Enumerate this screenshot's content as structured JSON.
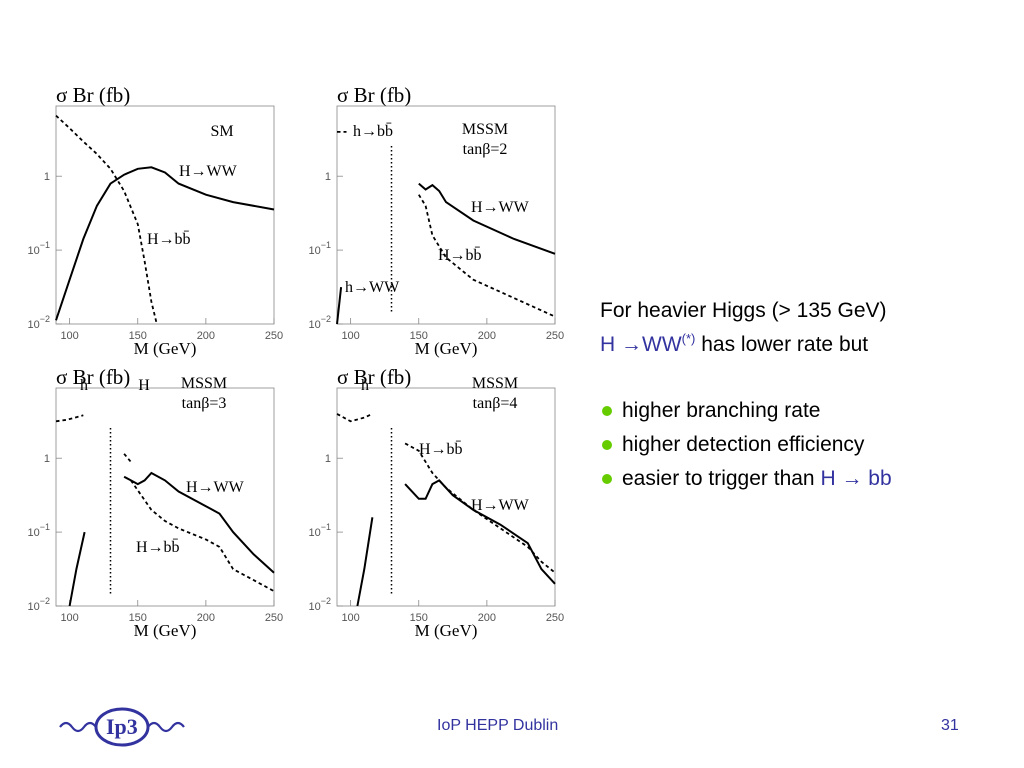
{
  "text": {
    "line1": "For heavier Higgs (> 135 GeV)",
    "line2_blue": "H →WW",
    "line2_sup": "(*)",
    "line2_rest": " has lower rate but",
    "bullets": [
      {
        "text": "higher branching rate",
        "blue": ""
      },
      {
        "text": "higher detection efficiency",
        "blue": ""
      },
      {
        "text": "easier to trigger than ",
        "blue": "H → bb"
      }
    ]
  },
  "footer": {
    "center": "IoP HEPP Dublin",
    "page": "31",
    "logo_text": "Ip3"
  },
  "colors": {
    "accent_blue": "#3333a0",
    "bullet_green": "#66cc00"
  },
  "chart_data": [
    {
      "type": "line",
      "title": "σ Br   (fb)",
      "xlabel": "M  (GeV)",
      "xlim": [
        90,
        250
      ],
      "ylim_log10": [
        -2,
        0.95
      ],
      "xticks": [
        "100",
        "150",
        "200",
        "250"
      ],
      "yticks": [
        {
          "base": "1",
          "exp": ""
        },
        {
          "base": "10",
          "exp": "−1"
        },
        {
          "base": "10",
          "exp": "−2"
        }
      ],
      "labels": [
        "SM"
      ],
      "separator_x": null,
      "series": [
        {
          "name": "H→WW",
          "style": "solid",
          "points": [
            [
              90,
              -1.95
            ],
            [
              100,
              -1.4
            ],
            [
              110,
              -0.85
            ],
            [
              120,
              -0.4
            ],
            [
              130,
              -0.1
            ],
            [
              140,
              0.02
            ],
            [
              150,
              0.1
            ],
            [
              160,
              0.12
            ],
            [
              170,
              0.05
            ],
            [
              180,
              -0.1
            ],
            [
              200,
              -0.25
            ],
            [
              220,
              -0.35
            ],
            [
              250,
              -0.45
            ]
          ]
        },
        {
          "name": "H→bb̄",
          "style": "dashed",
          "points": [
            [
              90,
              0.82
            ],
            [
              100,
              0.65
            ],
            [
              110,
              0.47
            ],
            [
              120,
              0.3
            ],
            [
              130,
              0.1
            ],
            [
              140,
              -0.2
            ],
            [
              150,
              -0.65
            ],
            [
              155,
              -1.15
            ],
            [
              160,
              -1.7
            ],
            [
              164,
              -2.0
            ]
          ]
        }
      ]
    },
    {
      "type": "line",
      "title": "σ Br   (fb)",
      "xlabel": "M  (GeV)",
      "xlim": [
        90,
        250
      ],
      "ylim_log10": [
        -2,
        0.95
      ],
      "xticks": [
        "100",
        "150",
        "200",
        "250"
      ],
      "yticks": [
        {
          "base": "1",
          "exp": ""
        },
        {
          "base": "10",
          "exp": "−1"
        },
        {
          "base": "10",
          "exp": "−2"
        }
      ],
      "labels": [
        "MSSM",
        "tanβ=2"
      ],
      "separator_x": 130,
      "series": [
        {
          "name": "h→bb̄",
          "style": "dashed",
          "points": [
            [
              90,
              0.6
            ],
            [
              97,
              0.6
            ]
          ]
        },
        {
          "name": "h→WW",
          "style": "solid",
          "points": [
            [
              90,
              -2.0
            ],
            [
              93,
              -1.5
            ]
          ]
        },
        {
          "name": "H→WW",
          "style": "solid",
          "points": [
            [
              150,
              -0.1
            ],
            [
              155,
              -0.18
            ],
            [
              160,
              -0.12
            ],
            [
              165,
              -0.2
            ],
            [
              170,
              -0.35
            ],
            [
              190,
              -0.6
            ],
            [
              220,
              -0.85
            ],
            [
              250,
              -1.05
            ]
          ]
        },
        {
          "name": "H→bb̄",
          "style": "dashed",
          "points": [
            [
              150,
              -0.25
            ],
            [
              155,
              -0.4
            ],
            [
              160,
              -0.8
            ],
            [
              170,
              -1.1
            ],
            [
              190,
              -1.4
            ],
            [
              220,
              -1.65
            ],
            [
              250,
              -1.9
            ]
          ]
        }
      ]
    },
    {
      "type": "line",
      "title": "σ Br   (fb)",
      "xlabel": "M  (GeV)",
      "xlim": [
        90,
        250
      ],
      "ylim_log10": [
        -2,
        0.95
      ],
      "xticks": [
        "100",
        "150",
        "200",
        "250"
      ],
      "yticks": [
        {
          "base": "1",
          "exp": ""
        },
        {
          "base": "10",
          "exp": "−1"
        },
        {
          "base": "10",
          "exp": "−2"
        }
      ],
      "labels": [
        "MSSM",
        "tanβ=3",
        "h",
        "H"
      ],
      "separator_x": 130,
      "series": [
        {
          "name": "h",
          "style": "dashed",
          "points": [
            [
              90,
              0.5
            ],
            [
              98,
              0.52
            ],
            [
              104,
              0.55
            ],
            [
              110,
              0.58
            ]
          ]
        },
        {
          "name": "",
          "style": "solid",
          "points": [
            [
              100,
              -2.0
            ],
            [
              105,
              -1.5
            ],
            [
              111,
              -1.0
            ]
          ]
        },
        {
          "name": "H",
          "style": "dashed",
          "points": [
            [
              140,
              0.06
            ],
            [
              145,
              -0.05
            ]
          ]
        },
        {
          "name": "H→WW",
          "style": "solid",
          "points": [
            [
              140,
              -0.25
            ],
            [
              150,
              -0.35
            ],
            [
              155,
              -0.3
            ],
            [
              160,
              -0.2
            ],
            [
              170,
              -0.3
            ],
            [
              180,
              -0.45
            ],
            [
              200,
              -0.65
            ],
            [
              210,
              -0.75
            ],
            [
              220,
              -1.0
            ],
            [
              235,
              -1.3
            ],
            [
              250,
              -1.55
            ]
          ]
        },
        {
          "name": "H→bb̄",
          "style": "dashed",
          "points": [
            [
              145,
              -0.3
            ],
            [
              160,
              -0.7
            ],
            [
              170,
              -0.85
            ],
            [
              180,
              -0.95
            ],
            [
              200,
              -1.1
            ],
            [
              210,
              -1.2
            ],
            [
              220,
              -1.5
            ],
            [
              235,
              -1.65
            ],
            [
              250,
              -1.8
            ]
          ]
        }
      ]
    },
    {
      "type": "line",
      "title": "σ Br   (fb)",
      "xlabel": "M  (GeV)",
      "xlim": [
        90,
        250
      ],
      "ylim_log10": [
        -2,
        0.95
      ],
      "xticks": [
        "100",
        "150",
        "200",
        "250"
      ],
      "yticks": [
        {
          "base": "1",
          "exp": ""
        },
        {
          "base": "10",
          "exp": "−1"
        },
        {
          "base": "10",
          "exp": "−2"
        }
      ],
      "labels": [
        "MSSM",
        "tanβ=4",
        "h"
      ],
      "separator_x": 130,
      "series": [
        {
          "name": "h",
          "style": "dashed",
          "points": [
            [
              90,
              0.6
            ],
            [
              100,
              0.5
            ],
            [
              110,
              0.55
            ],
            [
              116,
              0.6
            ]
          ]
        },
        {
          "name": "",
          "style": "solid",
          "points": [
            [
              105,
              -2.0
            ],
            [
              110,
              -1.5
            ],
            [
              116,
              -0.8
            ]
          ]
        },
        {
          "name": "H→bb̄",
          "style": "dashed",
          "points": [
            [
              140,
              0.2
            ],
            [
              150,
              0.1
            ],
            [
              160,
              -0.2
            ],
            [
              170,
              -0.4
            ],
            [
              190,
              -0.7
            ],
            [
              210,
              -0.95
            ],
            [
              230,
              -1.2
            ],
            [
              240,
              -1.4
            ],
            [
              250,
              -1.55
            ]
          ]
        },
        {
          "name": "H→WW",
          "style": "solid",
          "points": [
            [
              140,
              -0.35
            ],
            [
              150,
              -0.55
            ],
            [
              155,
              -0.55
            ],
            [
              160,
              -0.35
            ],
            [
              165,
              -0.3
            ],
            [
              175,
              -0.5
            ],
            [
              190,
              -0.7
            ],
            [
              210,
              -0.9
            ],
            [
              230,
              -1.15
            ],
            [
              240,
              -1.5
            ],
            [
              250,
              -1.7
            ]
          ]
        }
      ]
    }
  ]
}
